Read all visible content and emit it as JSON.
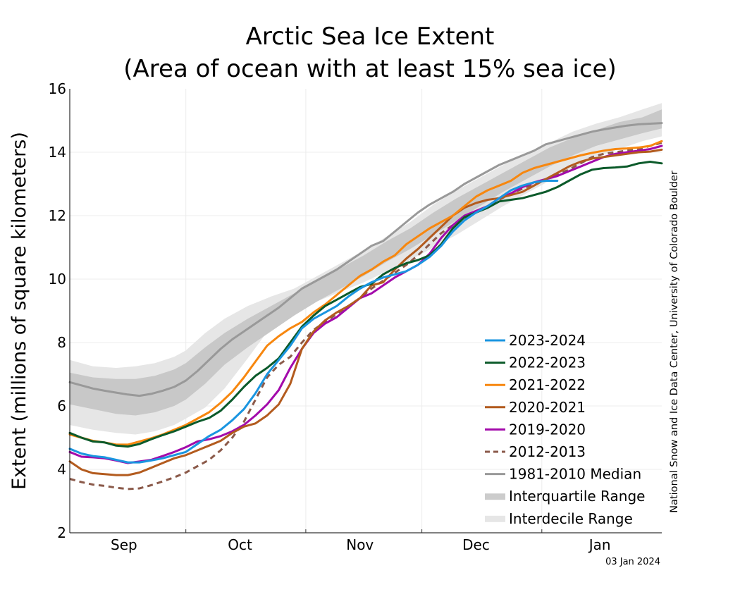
{
  "chart_data": {
    "type": "line",
    "title_line1": "Arctic Sea Ice Extent",
    "title_line2": "(Area of ocean with at least 15% sea ice)",
    "ylabel": "Extent (millions of square kilometers)",
    "xlabel": "",
    "ylim": [
      2,
      16
    ],
    "yticks": [
      2,
      4,
      6,
      8,
      10,
      12,
      14,
      16
    ],
    "xlim": [
      0,
      153
    ],
    "x_unit": "day since 1 Aug",
    "month_labels": [
      {
        "label": "Sep",
        "x": 14
      },
      {
        "label": "Oct",
        "x": 44
      },
      {
        "label": "Nov",
        "x": 75
      },
      {
        "label": "Dec",
        "x": 105
      },
      {
        "label": "Jan",
        "x": 137
      }
    ],
    "month_boundaries": [
      30,
      61,
      91,
      122
    ],
    "grid": true,
    "legend_placement": "lower-right",
    "credit": "National Snow and Ice Data Center, University of Colorado Boulder",
    "date_stamp": "03 Jan 2024",
    "interdecile": [
      {
        "x": 0,
        "lo": 5.4,
        "hi": 7.45
      },
      {
        "x": 6,
        "lo": 5.25,
        "hi": 7.25
      },
      {
        "x": 12,
        "lo": 5.15,
        "hi": 7.2
      },
      {
        "x": 17,
        "lo": 5.1,
        "hi": 7.25
      },
      {
        "x": 22,
        "lo": 5.2,
        "hi": 7.35
      },
      {
        "x": 27,
        "lo": 5.4,
        "hi": 7.55
      },
      {
        "x": 30,
        "lo": 5.6,
        "hi": 7.75
      },
      {
        "x": 35,
        "lo": 5.95,
        "hi": 8.3
      },
      {
        "x": 40,
        "lo": 6.55,
        "hi": 8.75
      },
      {
        "x": 46,
        "lo": 7.5,
        "hi": 9.15
      },
      {
        "x": 52,
        "lo": 8.5,
        "hi": 9.45
      },
      {
        "x": 58,
        "lo": 8.9,
        "hi": 9.7
      },
      {
        "x": 64,
        "lo": 9.3,
        "hi": 10.1
      },
      {
        "x": 70,
        "lo": 9.6,
        "hi": 10.5
      },
      {
        "x": 76,
        "lo": 9.9,
        "hi": 10.9
      },
      {
        "x": 82,
        "lo": 10.25,
        "hi": 11.35
      },
      {
        "x": 88,
        "lo": 10.6,
        "hi": 11.8
      },
      {
        "x": 94,
        "lo": 11.0,
        "hi": 12.35
      },
      {
        "x": 100,
        "lo": 11.4,
        "hi": 12.8
      },
      {
        "x": 106,
        "lo": 11.85,
        "hi": 13.2
      },
      {
        "x": 112,
        "lo": 12.3,
        "hi": 13.6
      },
      {
        "x": 118,
        "lo": 12.7,
        "hi": 13.95
      },
      {
        "x": 124,
        "lo": 13.1,
        "hi": 14.3
      },
      {
        "x": 130,
        "lo": 13.5,
        "hi": 14.65
      },
      {
        "x": 136,
        "lo": 13.85,
        "hi": 14.9
      },
      {
        "x": 142,
        "lo": 14.1,
        "hi": 15.1
      },
      {
        "x": 148,
        "lo": 14.35,
        "hi": 15.35
      },
      {
        "x": 153,
        "lo": 14.5,
        "hi": 15.55
      }
    ],
    "interquartile": [
      {
        "x": 0,
        "lo": 6.05,
        "hi": 7.05
      },
      {
        "x": 6,
        "lo": 5.9,
        "hi": 6.9
      },
      {
        "x": 12,
        "lo": 5.75,
        "hi": 6.85
      },
      {
        "x": 17,
        "lo": 5.7,
        "hi": 6.85
      },
      {
        "x": 22,
        "lo": 5.8,
        "hi": 6.95
      },
      {
        "x": 27,
        "lo": 6.0,
        "hi": 7.15
      },
      {
        "x": 30,
        "lo": 6.2,
        "hi": 7.35
      },
      {
        "x": 35,
        "lo": 6.7,
        "hi": 7.85
      },
      {
        "x": 40,
        "lo": 7.3,
        "hi": 8.3
      },
      {
        "x": 46,
        "lo": 7.85,
        "hi": 8.75
      },
      {
        "x": 52,
        "lo": 8.35,
        "hi": 9.15
      },
      {
        "x": 58,
        "lo": 8.85,
        "hi": 9.55
      },
      {
        "x": 64,
        "lo": 9.3,
        "hi": 9.95
      },
      {
        "x": 70,
        "lo": 9.7,
        "hi": 10.35
      },
      {
        "x": 76,
        "lo": 10.1,
        "hi": 10.75
      },
      {
        "x": 82,
        "lo": 10.55,
        "hi": 11.2
      },
      {
        "x": 88,
        "lo": 10.95,
        "hi": 11.6
      },
      {
        "x": 94,
        "lo": 11.4,
        "hi": 12.1
      },
      {
        "x": 100,
        "lo": 11.85,
        "hi": 12.55
      },
      {
        "x": 106,
        "lo": 12.3,
        "hi": 12.95
      },
      {
        "x": 112,
        "lo": 12.75,
        "hi": 13.35
      },
      {
        "x": 118,
        "lo": 13.15,
        "hi": 13.75
      },
      {
        "x": 124,
        "lo": 13.55,
        "hi": 14.15
      },
      {
        "x": 130,
        "lo": 13.9,
        "hi": 14.45
      },
      {
        "x": 136,
        "lo": 14.2,
        "hi": 14.7
      },
      {
        "x": 142,
        "lo": 14.4,
        "hi": 14.95
      },
      {
        "x": 148,
        "lo": 14.6,
        "hi": 15.1
      },
      {
        "x": 153,
        "lo": 14.75,
        "hi": 15.35
      }
    ],
    "series": [
      {
        "name": "1981-2010 Median",
        "color": "#999999",
        "dash": "",
        "width": 3,
        "x": [
          0,
          3,
          6,
          9,
          12,
          15,
          18,
          21,
          24,
          27,
          30,
          33,
          36,
          39,
          42,
          45,
          48,
          51,
          54,
          57,
          60,
          63,
          66,
          69,
          72,
          75,
          78,
          81,
          84,
          87,
          90,
          93,
          96,
          99,
          102,
          105,
          108,
          111,
          114,
          117,
          120,
          123,
          126,
          129,
          132,
          135,
          138,
          141,
          144,
          147,
          150,
          153
        ],
        "values": [
          6.75,
          6.65,
          6.55,
          6.48,
          6.42,
          6.36,
          6.32,
          6.38,
          6.48,
          6.6,
          6.8,
          7.1,
          7.45,
          7.8,
          8.1,
          8.35,
          8.6,
          8.85,
          9.1,
          9.4,
          9.7,
          9.9,
          10.1,
          10.3,
          10.55,
          10.8,
          11.05,
          11.2,
          11.5,
          11.8,
          12.1,
          12.35,
          12.55,
          12.75,
          13.0,
          13.2,
          13.4,
          13.6,
          13.75,
          13.9,
          14.05,
          14.25,
          14.35,
          14.45,
          14.55,
          14.65,
          14.72,
          14.78,
          14.84,
          14.88,
          14.9,
          14.92
        ]
      },
      {
        "name": "2012-2013",
        "color": "#8b5a4a",
        "dash": "8,6",
        "width": 3,
        "x": [
          0,
          3,
          6,
          9,
          12,
          15,
          18,
          21,
          24,
          27,
          30,
          33,
          36,
          39,
          42,
          45,
          48,
          51,
          54,
          57,
          60,
          63,
          66,
          69,
          72,
          75,
          78,
          81,
          84,
          87,
          90,
          93,
          96,
          99,
          102,
          105,
          108,
          111,
          114,
          117,
          120,
          123,
          126,
          129,
          132,
          135,
          138,
          141,
          144,
          147,
          150,
          153
        ],
        "values": [
          3.7,
          3.6,
          3.52,
          3.48,
          3.42,
          3.38,
          3.4,
          3.5,
          3.62,
          3.75,
          3.9,
          4.1,
          4.3,
          4.6,
          5.0,
          5.5,
          6.2,
          6.9,
          7.3,
          7.55,
          8.0,
          8.4,
          8.65,
          8.9,
          9.15,
          9.4,
          9.7,
          9.95,
          10.2,
          10.45,
          10.75,
          11.1,
          11.45,
          11.7,
          11.9,
          12.1,
          12.3,
          12.5,
          12.7,
          12.85,
          13.0,
          13.15,
          13.3,
          13.45,
          13.65,
          13.85,
          13.95,
          14.0,
          14.05,
          14.1,
          14.2,
          14.3
        ]
      },
      {
        "name": "2019-2020",
        "color": "#a30aab",
        "dash": "",
        "width": 3,
        "x": [
          0,
          3,
          6,
          9,
          12,
          15,
          18,
          21,
          24,
          27,
          30,
          33,
          36,
          39,
          42,
          45,
          48,
          51,
          54,
          57,
          60,
          63,
          66,
          69,
          72,
          75,
          78,
          81,
          84,
          87,
          90,
          93,
          96,
          99,
          102,
          105,
          108,
          111,
          114,
          117,
          120,
          123,
          126,
          129,
          132,
          135,
          138,
          141,
          144,
          147,
          150,
          153
        ],
        "values": [
          4.55,
          4.4,
          4.38,
          4.35,
          4.28,
          4.2,
          4.25,
          4.3,
          4.42,
          4.55,
          4.7,
          4.88,
          4.95,
          5.05,
          5.2,
          5.4,
          5.7,
          6.05,
          6.5,
          7.2,
          7.8,
          8.3,
          8.6,
          8.8,
          9.1,
          9.4,
          9.55,
          9.8,
          10.05,
          10.25,
          10.45,
          10.8,
          11.3,
          11.7,
          12.0,
          12.15,
          12.3,
          12.55,
          12.7,
          12.9,
          13.05,
          13.15,
          13.25,
          13.4,
          13.55,
          13.7,
          13.85,
          13.95,
          14.0,
          14.05,
          14.1,
          14.2
        ]
      },
      {
        "name": "2020-2021",
        "color": "#b35b1e",
        "dash": "",
        "width": 3,
        "x": [
          0,
          3,
          6,
          9,
          12,
          15,
          18,
          21,
          24,
          27,
          30,
          33,
          36,
          39,
          42,
          45,
          48,
          51,
          54,
          57,
          60,
          63,
          66,
          69,
          72,
          75,
          78,
          81,
          84,
          87,
          90,
          93,
          96,
          99,
          102,
          105,
          108,
          111,
          114,
          117,
          120,
          123,
          126,
          129,
          132,
          135,
          138,
          141,
          144,
          147,
          150,
          153
        ],
        "values": [
          4.25,
          4.0,
          3.88,
          3.85,
          3.82,
          3.82,
          3.9,
          4.05,
          4.2,
          4.35,
          4.45,
          4.6,
          4.75,
          4.9,
          5.15,
          5.35,
          5.45,
          5.7,
          6.05,
          6.7,
          7.8,
          8.35,
          8.7,
          8.95,
          9.15,
          9.4,
          9.8,
          9.9,
          10.3,
          10.65,
          10.95,
          11.3,
          11.65,
          12.0,
          12.25,
          12.4,
          12.5,
          12.55,
          12.65,
          12.75,
          12.95,
          13.15,
          13.35,
          13.55,
          13.7,
          13.8,
          13.85,
          13.9,
          13.95,
          14.0,
          14.02,
          14.08
        ]
      },
      {
        "name": "2021-2022",
        "color": "#f7870f",
        "dash": "",
        "width": 3,
        "x": [
          0,
          3,
          6,
          9,
          12,
          15,
          18,
          21,
          24,
          27,
          30,
          33,
          36,
          39,
          42,
          45,
          48,
          51,
          54,
          57,
          60,
          63,
          66,
          69,
          72,
          75,
          78,
          81,
          84,
          87,
          90,
          93,
          96,
          99,
          102,
          105,
          108,
          111,
          114,
          117,
          120,
          123,
          126,
          129,
          132,
          135,
          138,
          141,
          144,
          147,
          150,
          153
        ],
        "values": [
          5.1,
          5.0,
          4.9,
          4.85,
          4.78,
          4.78,
          4.88,
          4.98,
          5.1,
          5.25,
          5.4,
          5.6,
          5.8,
          6.1,
          6.45,
          6.9,
          7.4,
          7.9,
          8.2,
          8.45,
          8.65,
          8.95,
          9.2,
          9.5,
          9.8,
          10.1,
          10.3,
          10.55,
          10.75,
          11.1,
          11.35,
          11.6,
          11.8,
          12.0,
          12.3,
          12.6,
          12.8,
          12.95,
          13.1,
          13.35,
          13.5,
          13.6,
          13.7,
          13.8,
          13.9,
          13.98,
          14.05,
          14.1,
          14.12,
          14.15,
          14.2,
          14.35
        ]
      },
      {
        "name": "2022-2023",
        "color": "#0b5a2a",
        "dash": "",
        "width": 3,
        "x": [
          0,
          3,
          6,
          9,
          12,
          15,
          18,
          21,
          24,
          27,
          30,
          33,
          36,
          39,
          42,
          45,
          48,
          51,
          54,
          57,
          60,
          63,
          66,
          69,
          72,
          75,
          78,
          81,
          84,
          87,
          90,
          93,
          96,
          99,
          102,
          105,
          108,
          111,
          114,
          117,
          120,
          123,
          126,
          129,
          132,
          135,
          138,
          141,
          144,
          147,
          150,
          153
        ],
        "values": [
          5.15,
          5.0,
          4.88,
          4.85,
          4.75,
          4.72,
          4.8,
          4.95,
          5.08,
          5.2,
          5.35,
          5.5,
          5.62,
          5.85,
          6.2,
          6.6,
          6.95,
          7.2,
          7.5,
          8.0,
          8.5,
          8.85,
          9.15,
          9.35,
          9.55,
          9.75,
          9.85,
          10.15,
          10.35,
          10.5,
          10.6,
          10.75,
          11.1,
          11.6,
          11.95,
          12.1,
          12.25,
          12.45,
          12.5,
          12.55,
          12.65,
          12.75,
          12.9,
          13.1,
          13.3,
          13.45,
          13.5,
          13.52,
          13.55,
          13.65,
          13.7,
          13.65
        ]
      },
      {
        "name": "2023-2024",
        "color": "#1a95e0",
        "dash": "",
        "width": 3,
        "x": [
          0,
          3,
          6,
          9,
          12,
          15,
          18,
          21,
          24,
          27,
          30,
          33,
          36,
          39,
          42,
          45,
          48,
          51,
          54,
          57,
          60,
          63,
          66,
          69,
          72,
          75,
          78,
          81,
          84,
          87,
          90,
          93,
          96,
          99,
          102,
          105,
          108,
          111,
          114,
          117,
          120,
          123,
          126
        ],
        "values": [
          4.65,
          4.5,
          4.42,
          4.38,
          4.3,
          4.22,
          4.22,
          4.28,
          4.35,
          4.45,
          4.55,
          4.8,
          5.05,
          5.25,
          5.55,
          5.9,
          6.4,
          7.0,
          7.45,
          7.9,
          8.45,
          8.75,
          8.95,
          9.15,
          9.45,
          9.7,
          9.9,
          10.05,
          10.15,
          10.25,
          10.45,
          10.7,
          11.05,
          11.5,
          11.85,
          12.1,
          12.3,
          12.55,
          12.8,
          12.95,
          13.05,
          13.1,
          13.1
        ]
      }
    ],
    "legend": [
      {
        "label": "2023-2024",
        "color": "#1a95e0",
        "kind": "line",
        "dash": ""
      },
      {
        "label": "2022-2023",
        "color": "#0b5a2a",
        "kind": "line",
        "dash": ""
      },
      {
        "label": "2021-2022",
        "color": "#f7870f",
        "kind": "line",
        "dash": ""
      },
      {
        "label": "2020-2021",
        "color": "#b35b1e",
        "kind": "line",
        "dash": ""
      },
      {
        "label": "2019-2020",
        "color": "#a30aab",
        "kind": "line",
        "dash": ""
      },
      {
        "label": "2012-2013",
        "color": "#8b5a4a",
        "kind": "line",
        "dash": "8,6"
      },
      {
        "label": "1981-2010 Median",
        "color": "#999999",
        "kind": "line",
        "dash": ""
      },
      {
        "label": "Interquartile Range",
        "color": "#cccccc",
        "kind": "band",
        "dash": ""
      },
      {
        "label": "Interdecile Range",
        "color": "#e6e6e6",
        "kind": "band",
        "dash": ""
      }
    ],
    "band_colors": {
      "interdecile": "#e6e6e6",
      "interquartile": "#c8c8c8"
    }
  }
}
